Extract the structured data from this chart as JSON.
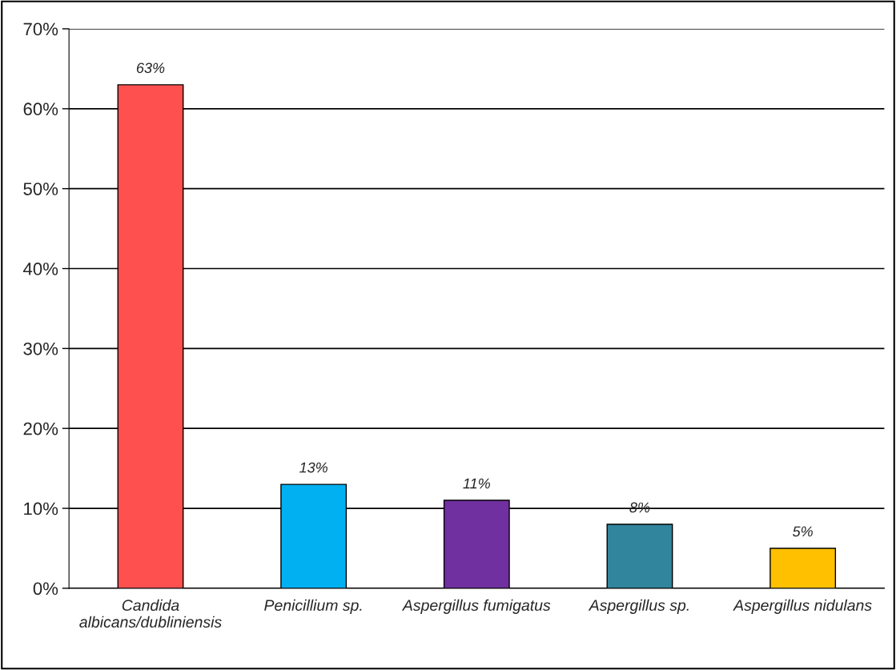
{
  "chart_data": {
    "type": "bar",
    "categories": [
      "Candida\nalbicans/dubliniensis",
      "Penicillium sp.",
      "Aspergillus fumigatus",
      "Aspergillus sp.",
      "Aspergillus nidulans"
    ],
    "values": [
      63,
      13,
      11,
      8,
      5
    ],
    "colors": [
      "#ff5050",
      "#00b0f0",
      "#7030a0",
      "#31859c",
      "#ffc000"
    ],
    "value_labels": [
      "63%",
      "13%",
      "11%",
      "8%",
      "5%"
    ],
    "ylim": [
      0,
      70
    ],
    "yticks": [
      {
        "value": 0,
        "label": "0%"
      },
      {
        "value": 10,
        "label": "10%"
      },
      {
        "value": 20,
        "label": "20%"
      },
      {
        "value": 30,
        "label": "30%"
      },
      {
        "value": 40,
        "label": "40%"
      },
      {
        "value": 50,
        "label": "50%"
      },
      {
        "value": 60,
        "label": "60%"
      },
      {
        "value": 70,
        "label": "70%"
      }
    ],
    "grid": "y",
    "legend": false
  }
}
